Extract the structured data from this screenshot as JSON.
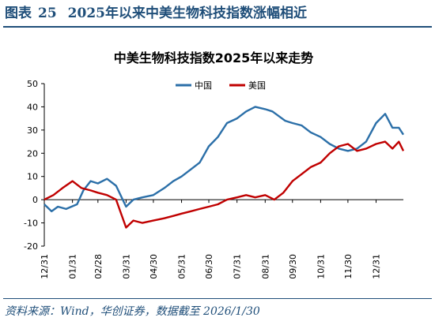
{
  "caption": {
    "label": "图表",
    "number": "25",
    "text": "2025年以来中美生物科技指数涨幅相近"
  },
  "source": "资料来源：Wind，华创证券，数据截至 2026/1/30",
  "chart_data": {
    "type": "line",
    "title": "中美生物科技指数2025年以来走势",
    "xlabel": "",
    "ylabel": "",
    "x_ticks": [
      "12/31",
      "01/31",
      "02/28",
      "03/31",
      "04/30",
      "05/31",
      "06/30",
      "07/31",
      "08/31",
      "09/30",
      "10/31",
      "11/30",
      "12/31"
    ],
    "ylim": [
      -20,
      50
    ],
    "y_ticks": [
      50,
      40,
      30,
      20,
      10,
      0,
      -10,
      -20
    ],
    "grid": false,
    "legend_position": "top-center",
    "series": [
      {
        "name": "中国",
        "color": "#2b6fa8",
        "points": [
          [
            "12/31",
            -2
          ],
          [
            "01/08",
            -5
          ],
          [
            "01/15",
            -3
          ],
          [
            "01/24",
            -4
          ],
          [
            "02/05",
            -2
          ],
          [
            "02/12",
            4
          ],
          [
            "02/20",
            8
          ],
          [
            "02/28",
            7
          ],
          [
            "03/10",
            9
          ],
          [
            "03/20",
            6
          ],
          [
            "03/31",
            -3
          ],
          [
            "04/08",
            0
          ],
          [
            "04/18",
            1
          ],
          [
            "04/30",
            2
          ],
          [
            "05/12",
            5
          ],
          [
            "05/22",
            8
          ],
          [
            "05/31",
            10
          ],
          [
            "06/10",
            13
          ],
          [
            "06/20",
            16
          ],
          [
            "06/30",
            23
          ],
          [
            "07/10",
            27
          ],
          [
            "07/20",
            33
          ],
          [
            "07/31",
            35
          ],
          [
            "08/10",
            38
          ],
          [
            "08/20",
            40
          ],
          [
            "08/31",
            39
          ],
          [
            "09/08",
            38
          ],
          [
            "09/15",
            36
          ],
          [
            "09/22",
            34
          ],
          [
            "09/30",
            33
          ],
          [
            "10/10",
            32
          ],
          [
            "10/20",
            29
          ],
          [
            "10/31",
            27
          ],
          [
            "11/10",
            24
          ],
          [
            "11/20",
            22
          ],
          [
            "11/30",
            21
          ],
          [
            "12/10",
            22
          ],
          [
            "12/20",
            25
          ],
          [
            "12/31",
            33
          ],
          [
            "01/10",
            37
          ],
          [
            "01/18",
            31
          ],
          [
            "01/25",
            31
          ],
          [
            "01/30",
            28
          ]
        ]
      },
      {
        "name": "美国",
        "color": "#c00000",
        "points": [
          [
            "12/31",
            0
          ],
          [
            "01/10",
            2
          ],
          [
            "01/20",
            5
          ],
          [
            "01/31",
            8
          ],
          [
            "02/10",
            5
          ],
          [
            "02/20",
            4
          ],
          [
            "02/28",
            3
          ],
          [
            "03/10",
            2
          ],
          [
            "03/20",
            0
          ],
          [
            "03/31",
            -12
          ],
          [
            "04/08",
            -9
          ],
          [
            "04/18",
            -10
          ],
          [
            "04/30",
            -9
          ],
          [
            "05/12",
            -8
          ],
          [
            "05/22",
            -7
          ],
          [
            "05/31",
            -6
          ],
          [
            "06/10",
            -5
          ],
          [
            "06/20",
            -4
          ],
          [
            "06/30",
            -3
          ],
          [
            "07/10",
            -2
          ],
          [
            "07/20",
            0
          ],
          [
            "07/31",
            1
          ],
          [
            "08/10",
            2
          ],
          [
            "08/20",
            1
          ],
          [
            "08/31",
            2
          ],
          [
            "09/10",
            0
          ],
          [
            "09/20",
            3
          ],
          [
            "09/30",
            8
          ],
          [
            "10/10",
            11
          ],
          [
            "10/20",
            14
          ],
          [
            "10/31",
            16
          ],
          [
            "11/10",
            20
          ],
          [
            "11/20",
            23
          ],
          [
            "11/30",
            24
          ],
          [
            "12/10",
            21
          ],
          [
            "12/20",
            22
          ],
          [
            "12/31",
            24
          ],
          [
            "01/10",
            25
          ],
          [
            "01/18",
            22
          ],
          [
            "01/25",
            25
          ],
          [
            "01/30",
            21
          ]
        ]
      }
    ]
  }
}
